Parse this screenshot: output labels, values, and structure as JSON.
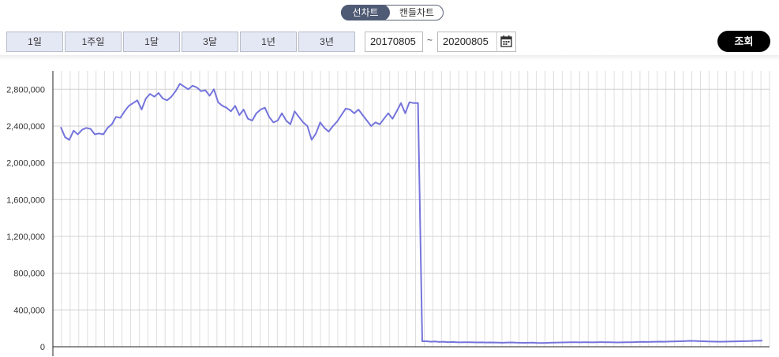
{
  "toggle": {
    "line_label": "선차트",
    "candle_label": "캔들차트",
    "active": "line"
  },
  "periods": [
    "1일",
    "1주일",
    "1달",
    "3달",
    "1년",
    "3년"
  ],
  "date_range": {
    "start": "20170805",
    "separator": "~",
    "end": "20200805"
  },
  "search_label": "조회",
  "icons": {
    "calendar": "calendar-icon"
  },
  "colors": {
    "line": "#7474dc",
    "toggle_active": "#4f5a74",
    "period_bg": "#e4e7f4",
    "search_bg": "#000000"
  },
  "chart_data": {
    "type": "line",
    "grid": true,
    "ylim": [
      0,
      3000000
    ],
    "y_ticks": [
      0,
      400000,
      800000,
      1200000,
      1600000,
      2000000,
      2400000,
      2800000
    ],
    "y_tick_labels": [
      "0",
      "400,000",
      "800,000",
      "1,200,000",
      "1,600,000",
      "2,000,000",
      "2,400,000",
      "2,800,000"
    ],
    "series": [
      {
        "values": [
          2390000,
          2280000,
          2250000,
          2350000,
          2310000,
          2360000,
          2380000,
          2370000,
          2310000,
          2320000,
          2310000,
          2380000,
          2420000,
          2500000,
          2490000,
          2560000,
          2620000,
          2650000,
          2680000,
          2580000,
          2700000,
          2750000,
          2720000,
          2760000,
          2700000,
          2680000,
          2720000,
          2780000,
          2860000,
          2830000,
          2800000,
          2840000,
          2820000,
          2780000,
          2790000,
          2730000,
          2800000,
          2660000,
          2620000,
          2600000,
          2560000,
          2620000,
          2520000,
          2580000,
          2480000,
          2460000,
          2540000,
          2580000,
          2600000,
          2500000,
          2440000,
          2460000,
          2540000,
          2460000,
          2420000,
          2560000,
          2500000,
          2440000,
          2400000,
          2250000,
          2320000,
          2440000,
          2380000,
          2340000,
          2400000,
          2450000,
          2520000,
          2590000,
          2580000,
          2540000,
          2580000,
          2520000,
          2460000,
          2400000,
          2440000,
          2420000,
          2480000,
          2540000,
          2480000,
          2560000,
          2650000,
          2540000,
          2660000,
          2650000,
          2650000,
          60000,
          60000,
          55000,
          58000,
          52000,
          55000,
          50000,
          52000,
          50000,
          48000,
          50000,
          49000,
          48000,
          47000,
          48000,
          46000,
          47000,
          46000,
          45000,
          44000,
          46000,
          47000,
          45000,
          44000,
          43000,
          44000,
          45000,
          42000,
          41000,
          42000,
          44000,
          45000,
          46000,
          47000,
          48000,
          50000,
          49000,
          48000,
          50000,
          49000,
          48000,
          50000,
          51000,
          50000,
          49000,
          48000,
          47000,
          48000,
          49000,
          50000,
          51000,
          52000,
          53000,
          52000,
          54000,
          55000,
          56000,
          55000,
          57000,
          58000,
          59000,
          60000,
          62000,
          64000,
          63000,
          61000,
          60000,
          58000,
          57000,
          56000,
          55000,
          56000,
          57000,
          58000,
          59000,
          60000,
          61000,
          62000,
          64000,
          65000,
          66000
        ]
      }
    ]
  }
}
